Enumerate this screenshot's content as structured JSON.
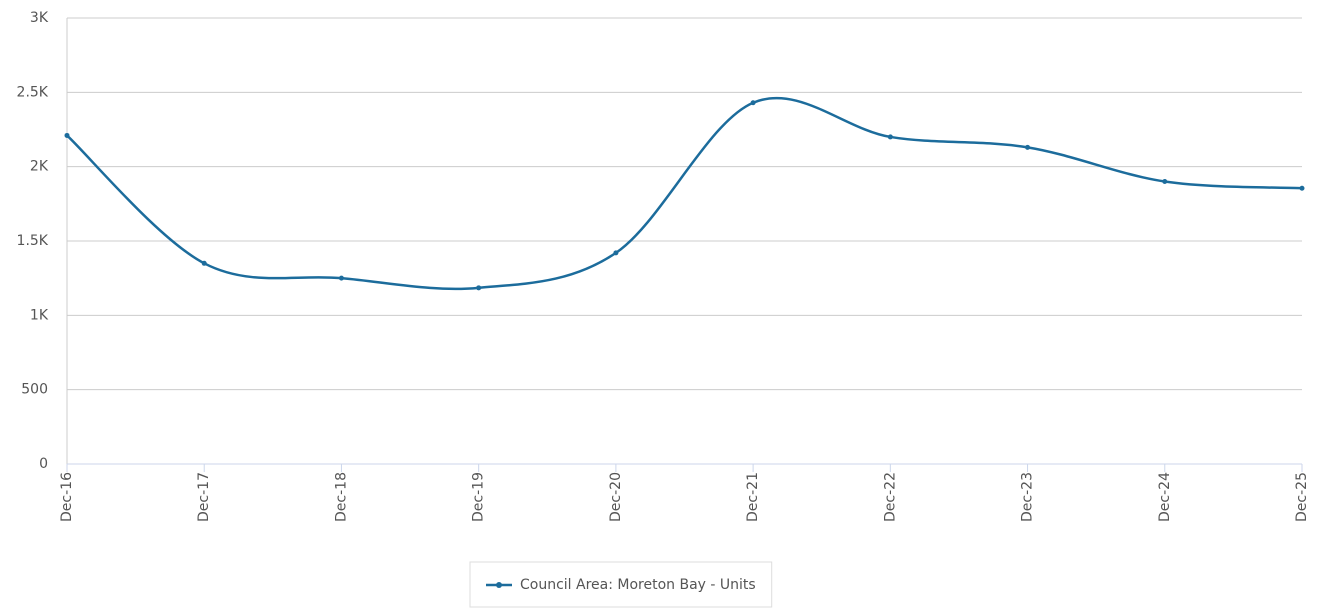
{
  "chart_data": {
    "type": "line",
    "categories": [
      "Dec-16",
      "Dec-17",
      "Dec-18",
      "Dec-19",
      "Dec-20",
      "Dec-21",
      "Dec-22",
      "Dec-23",
      "Dec-24",
      "Dec-25"
    ],
    "series": [
      {
        "name": "Council Area: Moreton Bay - Units",
        "color": "#1c6c9c",
        "values": [
          2210,
          1350,
          1250,
          1185,
          1420,
          2430,
          2200,
          2130,
          1900,
          1855
        ]
      }
    ],
    "ylim": [
      0,
      3000
    ],
    "yticks": [
      0,
      500,
      {
        "value": 1000,
        "label": "1K"
      },
      {
        "value": 1500,
        "label": "1.5K"
      },
      {
        "value": 2000,
        "label": "2K"
      },
      {
        "value": 2500,
        "label": "2.5K"
      },
      {
        "value": 3000,
        "label": "3K"
      }
    ],
    "grid": true,
    "legend": "bottom"
  }
}
